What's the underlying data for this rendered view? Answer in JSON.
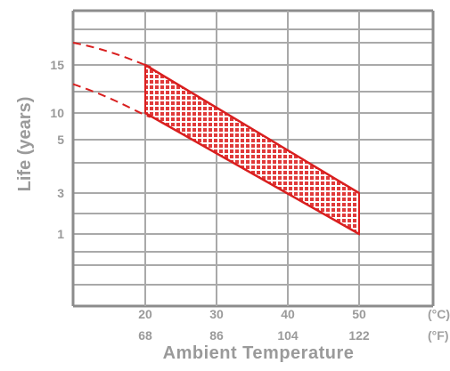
{
  "chart_data": {
    "type": "area",
    "title": "",
    "xlabel": "Ambient Temperature",
    "ylabel": "Life (years)",
    "x_units_row1": "(°C)",
    "x_units_row2": "(°F)",
    "x_ticks_row1": [
      "20",
      "30",
      "40",
      "50"
    ],
    "x_ticks_row2": [
      "68",
      "86",
      "104",
      "122"
    ],
    "x_tick_values": [
      20,
      30,
      40,
      50
    ],
    "y_ticks": [
      "15",
      "10",
      "5",
      "3",
      "1"
    ],
    "xlim": [
      10,
      50
    ],
    "grid": true,
    "colors": {
      "band": "#e03a3a",
      "band_edge": "#d91f1f",
      "grid": "#a9a9a9",
      "frame": "#8c8c8c",
      "labels": "#9a9a9a"
    },
    "series": [
      {
        "name": "",
        "role": "upper-limit",
        "x": [
          10,
          14,
          18,
          20,
          50
        ],
        "y": [
          "17",
          "16.5",
          "15.5",
          "15",
          "3"
        ]
      },
      {
        "name": "",
        "role": "lower-limit",
        "x": [
          10,
          14,
          18,
          20,
          50
        ],
        "y": [
          "13",
          "12",
          "10.5",
          "10",
          "1"
        ]
      }
    ],
    "notes": "Shaded band between 20 and 50 °C; dashed extrapolation below 20 °C"
  }
}
